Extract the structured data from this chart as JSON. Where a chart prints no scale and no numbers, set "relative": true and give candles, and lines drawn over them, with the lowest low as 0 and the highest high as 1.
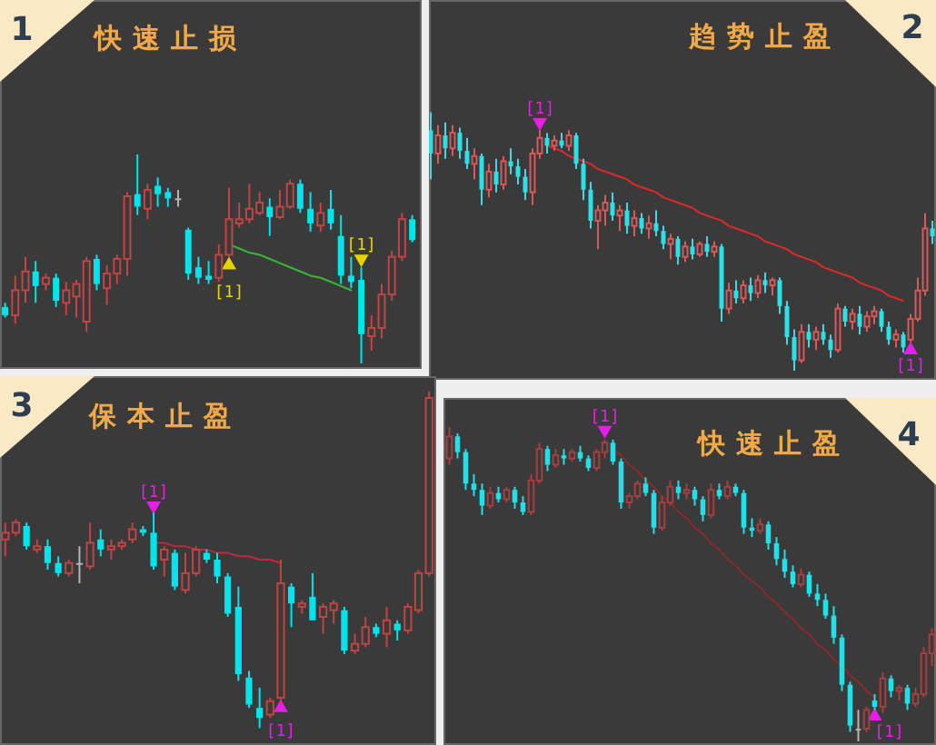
{
  "chart_data": [
    {
      "type": "candlestick",
      "title": "快速止损",
      "annotations": [
        "1"
      ],
      "relative": true,
      "categories": [
        null,
        null,
        null,
        null,
        null,
        null,
        null,
        null,
        null,
        null,
        null,
        null,
        null,
        null,
        null,
        null,
        null,
        null,
        null,
        null,
        null,
        null,
        null,
        null,
        null,
        null,
        null,
        null,
        null,
        null,
        null,
        null,
        null,
        null,
        null,
        null,
        null,
        null,
        null,
        null,
        null
      ],
      "ohlc": [
        [
          0.27,
          0.29,
          0.22,
          0.23
        ],
        [
          0.23,
          0.42,
          0.19,
          0.35
        ],
        [
          0.35,
          0.51,
          0.29,
          0.44
        ],
        [
          0.44,
          0.49,
          0.29,
          0.37
        ],
        [
          0.38,
          0.43,
          0.35,
          0.41
        ],
        [
          0.41,
          0.43,
          0.27,
          0.3
        ],
        [
          0.29,
          0.39,
          0.23,
          0.35
        ],
        [
          0.32,
          0.4,
          0.22,
          0.38
        ],
        [
          0.2,
          0.51,
          0.15,
          0.49
        ],
        [
          0.5,
          0.52,
          0.35,
          0.38
        ],
        [
          0.36,
          0.47,
          0.28,
          0.43
        ],
        [
          0.43,
          0.52,
          0.38,
          0.5
        ],
        [
          0.5,
          0.82,
          0.42,
          0.8
        ],
        [
          0.81,
          1.0,
          0.71,
          0.75
        ],
        [
          0.74,
          0.86,
          0.69,
          0.83
        ],
        [
          0.85,
          0.89,
          0.75,
          0.81
        ],
        [
          0.82,
          0.84,
          0.75,
          0.79
        ],
        [
          0.79,
          0.83,
          0.75,
          0.79
        ],
        [
          0.64,
          0.65,
          0.4,
          0.43
        ],
        [
          0.46,
          0.51,
          0.38,
          0.41
        ],
        [
          0.42,
          0.49,
          0.38,
          0.4
        ],
        [
          0.41,
          0.57,
          0.39,
          0.52
        ],
        [
          0.52,
          0.84,
          0.51,
          0.69
        ],
        [
          0.67,
          0.77,
          0.65,
          0.69
        ],
        [
          0.69,
          0.86,
          0.67,
          0.74
        ],
        [
          0.72,
          0.82,
          0.71,
          0.77
        ],
        [
          0.75,
          0.79,
          0.61,
          0.7
        ],
        [
          0.7,
          0.83,
          0.69,
          0.75
        ],
        [
          0.75,
          0.88,
          0.74,
          0.86
        ],
        [
          0.86,
          0.88,
          0.72,
          0.74
        ],
        [
          0.74,
          0.82,
          0.63,
          0.67
        ],
        [
          0.66,
          0.77,
          0.63,
          0.72
        ],
        [
          0.74,
          0.83,
          0.64,
          0.67
        ],
        [
          0.61,
          0.71,
          0.38,
          0.42
        ],
        [
          0.42,
          0.51,
          0.36,
          0.39
        ],
        [
          0.4,
          0.46,
          0.0,
          0.14
        ],
        [
          0.13,
          0.23,
          0.06,
          0.17
        ],
        [
          0.17,
          0.38,
          0.12,
          0.33
        ],
        [
          0.33,
          0.54,
          0.3,
          0.51
        ],
        [
          0.51,
          0.72,
          0.49,
          0.69
        ],
        [
          0.69,
          0.71,
          0.58,
          0.59
        ]
      ],
      "colors": [
        "#00e4ec",
        "#c24545",
        "#c24545",
        "#00e4ec",
        "#c24545",
        "#00e4ec",
        "#c24545",
        "#c24545",
        "#c24545",
        "#00e4ec",
        "#c24545",
        "#c24545",
        "#c24545",
        "#00e4ec",
        "#c24545",
        "#00e4ec",
        "#00e4ec",
        "#b4b4b4",
        "#00e4ec",
        "#00e4ec",
        "#00e4ec",
        "#c24545",
        "#c24545",
        "#c24545",
        "#c24545",
        "#c24545",
        "#00e4ec",
        "#c24545",
        "#c24545",
        "#00e4ec",
        "#00e4ec",
        "#c24545",
        "#00e4ec",
        "#00e4ec",
        "#00e4ec",
        "#00e4ec",
        "#c24545",
        "#c24545",
        "#c24545",
        "#c24545",
        "#00e4ec"
      ],
      "series": [
        {
          "type": "line",
          "color": "#38b838",
          "values": [
            null,
            null,
            null,
            null,
            null,
            null,
            null,
            null,
            null,
            null,
            null,
            null,
            null,
            null,
            null,
            null,
            null,
            null,
            null,
            null,
            null,
            null,
            0.57,
            0.55,
            0.53,
            0.52,
            0.5,
            0.48,
            0.46,
            0.44,
            0.42,
            0.41,
            0.39,
            0.37,
            0.35,
            null,
            null,
            null,
            null,
            null,
            null
          ]
        },
        {
          "type": "scatter",
          "name": "[1]",
          "color": "#e6d200",
          "marker": "triangle",
          "values": [
            null,
            null,
            null,
            null,
            null,
            null,
            null,
            null,
            null,
            null,
            null,
            null,
            null,
            null,
            null,
            null,
            null,
            null,
            null,
            null,
            null,
            null,
            0.47,
            null,
            null,
            null,
            null,
            null,
            null,
            null,
            null,
            null,
            null,
            null,
            null,
            0.5,
            null,
            null,
            null,
            null,
            null
          ]
        }
      ]
    },
    {
      "type": "candlestick",
      "title": "趋势止盈",
      "annotations": [
        "2"
      ],
      "relative": true,
      "categories": [
        null,
        null,
        null,
        null,
        null,
        null,
        null,
        null,
        null,
        null,
        null,
        null,
        null,
        null,
        null,
        null,
        null,
        null,
        null,
        null,
        null,
        null,
        null,
        null,
        null,
        null,
        null,
        null,
        null,
        null,
        null,
        null,
        null,
        null,
        null,
        null,
        null,
        null,
        null,
        null,
        null,
        null,
        null,
        null,
        null,
        null,
        null,
        null,
        null,
        null,
        null,
        null,
        null,
        null,
        null,
        null,
        null,
        null,
        null,
        null,
        null,
        null,
        null,
        null,
        null,
        null,
        null,
        null,
        null,
        null
      ],
      "ohlc": [
        [
          0.93,
          1.0,
          0.74,
          0.84
        ],
        [
          0.84,
          0.95,
          0.8,
          0.91
        ],
        [
          0.91,
          0.96,
          0.82,
          0.86
        ],
        [
          0.86,
          0.95,
          0.83,
          0.92
        ],
        [
          0.92,
          0.94,
          0.82,
          0.85
        ],
        [
          0.85,
          0.9,
          0.78,
          0.8
        ],
        [
          0.8,
          0.86,
          0.74,
          0.83
        ],
        [
          0.83,
          0.84,
          0.64,
          0.7
        ],
        [
          0.7,
          0.8,
          0.67,
          0.77
        ],
        [
          0.77,
          0.82,
          0.69,
          0.72
        ],
        [
          0.72,
          0.83,
          0.7,
          0.81
        ],
        [
          0.81,
          0.86,
          0.76,
          0.79
        ],
        [
          0.79,
          0.82,
          0.72,
          0.75
        ],
        [
          0.75,
          0.78,
          0.66,
          0.69
        ],
        [
          0.69,
          0.86,
          0.64,
          0.84
        ],
        [
          0.84,
          0.93,
          0.82,
          0.9
        ],
        [
          0.9,
          0.92,
          0.84,
          0.87
        ],
        [
          0.87,
          0.91,
          0.85,
          0.89
        ],
        [
          0.89,
          0.92,
          0.86,
          0.87
        ],
        [
          0.87,
          0.93,
          0.85,
          0.91
        ],
        [
          0.91,
          0.92,
          0.78,
          0.8
        ],
        [
          0.8,
          0.82,
          0.66,
          0.7
        ],
        [
          0.7,
          0.73,
          0.55,
          0.58
        ],
        [
          0.58,
          0.64,
          0.47,
          0.62
        ],
        [
          0.62,
          0.68,
          0.56,
          0.65
        ],
        [
          0.65,
          0.69,
          0.58,
          0.6
        ],
        [
          0.6,
          0.64,
          0.54,
          0.62
        ],
        [
          0.62,
          0.65,
          0.53,
          0.56
        ],
        [
          0.56,
          0.62,
          0.52,
          0.59
        ],
        [
          0.59,
          0.61,
          0.53,
          0.55
        ],
        [
          0.55,
          0.6,
          0.51,
          0.57
        ],
        [
          0.57,
          0.62,
          0.52,
          0.54
        ],
        [
          0.54,
          0.56,
          0.47,
          0.49
        ],
        [
          0.49,
          0.53,
          0.43,
          0.51
        ],
        [
          0.51,
          0.52,
          0.41,
          0.44
        ],
        [
          0.44,
          0.5,
          0.42,
          0.48
        ],
        [
          0.48,
          0.51,
          0.43,
          0.45
        ],
        [
          0.45,
          0.5,
          0.44,
          0.49
        ],
        [
          0.49,
          0.52,
          0.44,
          0.46
        ],
        [
          0.46,
          0.5,
          0.44,
          0.48
        ],
        [
          0.48,
          0.49,
          0.19,
          0.24
        ],
        [
          0.24,
          0.34,
          0.22,
          0.31
        ],
        [
          0.31,
          0.35,
          0.26,
          0.28
        ],
        [
          0.28,
          0.35,
          0.26,
          0.33
        ],
        [
          0.33,
          0.36,
          0.27,
          0.3
        ],
        [
          0.3,
          0.37,
          0.28,
          0.35
        ],
        [
          0.35,
          0.38,
          0.3,
          0.33
        ],
        [
          0.33,
          0.36,
          0.29,
          0.35
        ],
        [
          0.35,
          0.36,
          0.22,
          0.25
        ],
        [
          0.25,
          0.27,
          0.1,
          0.13
        ],
        [
          0.13,
          0.16,
          0.0,
          0.04
        ],
        [
          0.04,
          0.18,
          0.03,
          0.15
        ],
        [
          0.15,
          0.18,
          0.09,
          0.12
        ],
        [
          0.12,
          0.17,
          0.08,
          0.15
        ],
        [
          0.15,
          0.18,
          0.1,
          0.12
        ],
        [
          0.12,
          0.14,
          0.05,
          0.08
        ],
        [
          0.08,
          0.26,
          0.07,
          0.24
        ],
        [
          0.24,
          0.25,
          0.17,
          0.19
        ],
        [
          0.19,
          0.24,
          0.16,
          0.22
        ],
        [
          0.22,
          0.25,
          0.14,
          0.17
        ],
        [
          0.17,
          0.23,
          0.15,
          0.21
        ],
        [
          0.21,
          0.25,
          0.18,
          0.23
        ],
        [
          0.23,
          0.24,
          0.15,
          0.17
        ],
        [
          0.17,
          0.19,
          0.1,
          0.12
        ],
        [
          0.12,
          0.16,
          0.09,
          0.14
        ],
        [
          0.14,
          0.15,
          0.07,
          0.09
        ],
        [
          0.12,
          0.22,
          0.11,
          0.2
        ],
        [
          0.2,
          0.36,
          0.19,
          0.31
        ],
        [
          0.31,
          0.61,
          0.29,
          0.55
        ],
        [
          0.55,
          0.58,
          0.49,
          0.52
        ]
      ],
      "colors": [
        "#2ee0e6",
        "#e05555",
        "#2ee0e6",
        "#e05555",
        "#2ee0e6",
        "#2ee0e6",
        "#e05555",
        "#2ee0e6",
        "#e05555",
        "#2ee0e6",
        "#e05555",
        "#2ee0e6",
        "#2ee0e6",
        "#2ee0e6",
        "#e05555",
        "#e05555",
        "#2ee0e6",
        "#e05555",
        "#2ee0e6",
        "#e05555",
        "#2ee0e6",
        "#2ee0e6",
        "#2ee0e6",
        "#e05555",
        "#e05555",
        "#2ee0e6",
        "#e05555",
        "#2ee0e6",
        "#e05555",
        "#2ee0e6",
        "#e05555",
        "#2ee0e6",
        "#2ee0e6",
        "#e05555",
        "#2ee0e6",
        "#e05555",
        "#2ee0e6",
        "#e05555",
        "#2ee0e6",
        "#e05555",
        "#2ee0e6",
        "#e05555",
        "#2ee0e6",
        "#e05555",
        "#2ee0e6",
        "#e05555",
        "#2ee0e6",
        "#e05555",
        "#2ee0e6",
        "#2ee0e6",
        "#2ee0e6",
        "#e05555",
        "#2ee0e6",
        "#e05555",
        "#2ee0e6",
        "#2ee0e6",
        "#e05555",
        "#2ee0e6",
        "#e05555",
        "#2ee0e6",
        "#e05555",
        "#e05555",
        "#2ee0e6",
        "#2ee0e6",
        "#e05555",
        "#2ee0e6",
        "#e05555",
        "#e05555",
        "#e05555",
        "#2ee0e6"
      ],
      "series": [
        {
          "type": "line",
          "color": "#e02828",
          "values": [
            null,
            null,
            null,
            null,
            null,
            null,
            null,
            null,
            null,
            null,
            null,
            null,
            null,
            null,
            null,
            null,
            0.87,
            0.86,
            0.85,
            0.83,
            0.82,
            0.81,
            0.8,
            0.78,
            0.77,
            0.76,
            0.75,
            0.74,
            0.72,
            0.71,
            0.7,
            0.69,
            0.67,
            0.66,
            0.65,
            0.64,
            0.63,
            0.61,
            0.6,
            0.59,
            0.58,
            0.56,
            0.55,
            0.54,
            0.53,
            0.52,
            0.5,
            0.49,
            0.48,
            0.47,
            0.45,
            0.44,
            0.43,
            0.42,
            0.4,
            0.39,
            0.38,
            0.37,
            0.36,
            0.34,
            0.33,
            0.32,
            0.31,
            0.29,
            0.28,
            0.27,
            null,
            null,
            null,
            null
          ]
        },
        {
          "type": "scatter",
          "name": "[1]",
          "color": "#e61ee6",
          "marker": "triangle",
          "values": [
            null,
            null,
            null,
            null,
            null,
            null,
            null,
            null,
            null,
            null,
            null,
            null,
            null,
            null,
            null,
            0.96,
            null,
            null,
            null,
            null,
            null,
            null,
            null,
            null,
            null,
            null,
            null,
            null,
            null,
            null,
            null,
            null,
            null,
            null,
            null,
            null,
            null,
            null,
            null,
            null,
            null,
            null,
            null,
            null,
            null,
            null,
            null,
            null,
            null,
            null,
            null,
            null,
            null,
            null,
            null,
            null,
            null,
            null,
            null,
            null,
            null,
            null,
            null,
            null,
            null,
            null,
            0.08,
            null,
            null,
            null
          ]
        }
      ]
    },
    {
      "type": "candlestick",
      "title": "保本止盈",
      "annotations": [
        "3"
      ],
      "relative": true,
      "categories": [
        null,
        null,
        null,
        null,
        null,
        null,
        null,
        null,
        null,
        null,
        null,
        null,
        null,
        null,
        null,
        null,
        null,
        null,
        null,
        null,
        null,
        null,
        null,
        null,
        null,
        null,
        null,
        null,
        null,
        null,
        null,
        null,
        null,
        null,
        null,
        null,
        null,
        null,
        null,
        null,
        null
      ],
      "ohlc": [
        [
          0.56,
          0.61,
          0.51,
          0.58
        ],
        [
          0.58,
          0.62,
          0.57,
          0.61
        ],
        [
          0.6,
          0.61,
          0.53,
          0.54
        ],
        [
          0.53,
          0.56,
          0.52,
          0.54
        ],
        [
          0.54,
          0.56,
          0.47,
          0.49
        ],
        [
          0.49,
          0.51,
          0.45,
          0.46
        ],
        [
          0.46,
          0.5,
          0.45,
          0.49
        ],
        [
          0.49,
          0.54,
          0.43,
          0.49
        ],
        [
          0.48,
          0.61,
          0.47,
          0.55
        ],
        [
          0.56,
          0.59,
          0.51,
          0.53
        ],
        [
          0.53,
          0.56,
          0.5,
          0.54
        ],
        [
          0.54,
          0.56,
          0.53,
          0.55
        ],
        [
          0.56,
          0.61,
          0.55,
          0.59
        ],
        [
          0.59,
          0.6,
          0.57,
          0.58
        ],
        [
          0.58,
          0.64,
          0.47,
          0.48
        ],
        [
          0.5,
          0.54,
          0.45,
          0.53
        ],
        [
          0.52,
          0.53,
          0.41,
          0.42
        ],
        [
          0.41,
          0.52,
          0.4,
          0.46
        ],
        [
          0.46,
          0.54,
          0.45,
          0.53
        ],
        [
          0.52,
          0.53,
          0.49,
          0.5
        ],
        [
          0.5,
          0.52,
          0.43,
          0.45
        ],
        [
          0.45,
          0.46,
          0.33,
          0.34
        ],
        [
          0.36,
          0.42,
          0.14,
          0.16
        ],
        [
          0.15,
          0.17,
          0.06,
          0.07
        ],
        [
          0.06,
          0.12,
          0.0,
          0.03
        ],
        [
          0.04,
          0.09,
          0.03,
          0.08
        ],
        [
          0.09,
          0.5,
          0.08,
          0.43
        ],
        [
          0.42,
          0.43,
          0.3,
          0.37
        ],
        [
          0.36,
          0.38,
          0.34,
          0.37
        ],
        [
          0.39,
          0.46,
          0.32,
          0.32
        ],
        [
          0.33,
          0.37,
          0.28,
          0.36
        ],
        [
          0.35,
          0.38,
          0.31,
          0.37
        ],
        [
          0.35,
          0.36,
          0.22,
          0.23
        ],
        [
          0.23,
          0.28,
          0.22,
          0.25
        ],
        [
          0.25,
          0.33,
          0.24,
          0.3
        ],
        [
          0.3,
          0.31,
          0.27,
          0.28
        ],
        [
          0.28,
          0.36,
          0.24,
          0.32
        ],
        [
          0.31,
          0.32,
          0.26,
          0.29
        ],
        [
          0.29,
          0.37,
          0.28,
          0.36
        ],
        [
          0.35,
          0.47,
          0.34,
          0.46
        ],
        [
          0.46,
          1.0,
          0.45,
          0.98
        ]
      ],
      "colors": [
        "#c04444",
        "#c04444",
        "#00e4ec",
        "#c04444",
        "#00e4ec",
        "#00e4ec",
        "#c04444",
        "#b4b4b4",
        "#c04444",
        "#00e4ec",
        "#c04444",
        "#c04444",
        "#c04444",
        "#00e4ec",
        "#00e4ec",
        "#c04444",
        "#00e4ec",
        "#c04444",
        "#c04444",
        "#00e4ec",
        "#00e4ec",
        "#00e4ec",
        "#00e4ec",
        "#00e4ec",
        "#00e4ec",
        "#c04444",
        "#c04444",
        "#00e4ec",
        "#c04444",
        "#00e4ec",
        "#c04444",
        "#c04444",
        "#00e4ec",
        "#c04444",
        "#c04444",
        "#00e4ec",
        "#c04444",
        "#00e4ec",
        "#c04444",
        "#c04444",
        "#c04444"
      ],
      "series": [
        {
          "type": "line",
          "color": "#c02840",
          "values": [
            null,
            null,
            null,
            null,
            null,
            null,
            null,
            null,
            null,
            null,
            null,
            null,
            null,
            null,
            0.55,
            0.55,
            0.54,
            0.54,
            0.53,
            0.53,
            0.52,
            0.52,
            0.51,
            0.51,
            0.5,
            0.5,
            0.49,
            null,
            null,
            null,
            null,
            null,
            null,
            null,
            null,
            null,
            null,
            null,
            null,
            null,
            null
          ]
        },
        {
          "type": "scatter",
          "name": "[1]",
          "color": "#e61ee6",
          "marker": "triangle",
          "values": [
            null,
            null,
            null,
            null,
            null,
            null,
            null,
            null,
            null,
            null,
            null,
            null,
            null,
            null,
            0.66,
            null,
            null,
            null,
            null,
            null,
            null,
            null,
            null,
            null,
            null,
            null,
            0.06,
            null,
            null,
            null,
            null,
            null,
            null,
            null,
            null,
            null,
            null,
            null,
            null,
            null,
            null
          ]
        }
      ]
    },
    {
      "type": "candlestick",
      "title": "快速止盈",
      "annotations": [
        "4"
      ],
      "relative": true,
      "categories": [
        null,
        null,
        null,
        null,
        null,
        null,
        null,
        null,
        null,
        null,
        null,
        null,
        null,
        null,
        null,
        null,
        null,
        null,
        null,
        null,
        null,
        null,
        null,
        null,
        null,
        null,
        null,
        null,
        null,
        null,
        null,
        null,
        null,
        null,
        null,
        null,
        null,
        null,
        null,
        null,
        null,
        null,
        null,
        null,
        null,
        null,
        null,
        null,
        null,
        null,
        null,
        null,
        null,
        null,
        null,
        null,
        null,
        null,
        null,
        null
      ],
      "ohlc": [
        [
          0.9,
          1.0,
          0.88,
          0.97
        ],
        [
          0.97,
          0.98,
          0.9,
          0.92
        ],
        [
          0.92,
          0.93,
          0.8,
          0.82
        ],
        [
          0.82,
          0.85,
          0.78,
          0.8
        ],
        [
          0.8,
          0.82,
          0.72,
          0.75
        ],
        [
          0.75,
          0.81,
          0.74,
          0.79
        ],
        [
          0.79,
          0.81,
          0.76,
          0.77
        ],
        [
          0.77,
          0.81,
          0.76,
          0.8
        ],
        [
          0.8,
          0.81,
          0.74,
          0.76
        ],
        [
          0.76,
          0.78,
          0.72,
          0.73
        ],
        [
          0.73,
          0.85,
          0.72,
          0.83
        ],
        [
          0.83,
          0.95,
          0.82,
          0.93
        ],
        [
          0.93,
          0.94,
          0.86,
          0.88
        ],
        [
          0.88,
          0.93,
          0.87,
          0.91
        ],
        [
          0.91,
          0.93,
          0.88,
          0.9
        ],
        [
          0.9,
          0.93,
          0.89,
          0.92
        ],
        [
          0.92,
          0.94,
          0.89,
          0.9
        ],
        [
          0.9,
          0.91,
          0.86,
          0.87
        ],
        [
          0.87,
          0.93,
          0.86,
          0.92
        ],
        [
          0.92,
          0.96,
          0.9,
          0.95
        ],
        [
          0.95,
          0.96,
          0.88,
          0.89
        ],
        [
          0.89,
          0.9,
          0.74,
          0.76
        ],
        [
          0.76,
          0.79,
          0.74,
          0.78
        ],
        [
          0.78,
          0.83,
          0.77,
          0.82
        ],
        [
          0.82,
          0.84,
          0.78,
          0.79
        ],
        [
          0.79,
          0.8,
          0.66,
          0.68
        ],
        [
          0.68,
          0.78,
          0.67,
          0.76
        ],
        [
          0.76,
          0.83,
          0.75,
          0.81
        ],
        [
          0.81,
          0.83,
          0.77,
          0.79
        ],
        [
          0.79,
          0.82,
          0.77,
          0.8
        ],
        [
          0.8,
          0.81,
          0.75,
          0.77
        ],
        [
          0.77,
          0.78,
          0.7,
          0.72
        ],
        [
          0.72,
          0.82,
          0.71,
          0.8
        ],
        [
          0.8,
          0.82,
          0.77,
          0.78
        ],
        [
          0.78,
          0.83,
          0.77,
          0.81
        ],
        [
          0.81,
          0.82,
          0.78,
          0.79
        ],
        [
          0.79,
          0.8,
          0.66,
          0.68
        ],
        [
          0.68,
          0.71,
          0.65,
          0.67
        ],
        [
          0.67,
          0.71,
          0.66,
          0.69
        ],
        [
          0.69,
          0.7,
          0.61,
          0.63
        ],
        [
          0.63,
          0.65,
          0.56,
          0.58
        ],
        [
          0.58,
          0.61,
          0.52,
          0.54
        ],
        [
          0.54,
          0.56,
          0.49,
          0.5
        ],
        [
          0.5,
          0.55,
          0.49,
          0.53
        ],
        [
          0.53,
          0.54,
          0.46,
          0.47
        ],
        [
          0.47,
          0.5,
          0.43,
          0.45
        ],
        [
          0.45,
          0.47,
          0.39,
          0.4
        ],
        [
          0.4,
          0.43,
          0.31,
          0.33
        ],
        [
          0.33,
          0.34,
          0.16,
          0.18
        ],
        [
          0.18,
          0.19,
          0.03,
          0.05
        ],
        [
          0.04,
          0.1,
          0.0,
          0.04
        ],
        [
          0.04,
          0.11,
          0.03,
          0.1
        ],
        [
          0.13,
          0.15,
          0.1,
          0.11
        ],
        [
          0.11,
          0.22,
          0.09,
          0.2
        ],
        [
          0.2,
          0.21,
          0.14,
          0.16
        ],
        [
          0.16,
          0.18,
          0.13,
          0.17
        ],
        [
          0.17,
          0.18,
          0.1,
          0.12
        ],
        [
          0.12,
          0.17,
          0.11,
          0.15
        ],
        [
          0.15,
          0.3,
          0.14,
          0.28
        ],
        [
          0.28,
          0.36,
          0.24,
          0.34
        ]
      ],
      "colors": [
        "#a44040",
        "#22dfe8",
        "#22dfe8",
        "#22dfe8",
        "#22dfe8",
        "#a44040",
        "#22dfe8",
        "#a44040",
        "#22dfe8",
        "#22dfe8",
        "#a44040",
        "#a44040",
        "#22dfe8",
        "#a44040",
        "#22dfe8",
        "#a44040",
        "#22dfe8",
        "#22dfe8",
        "#a44040",
        "#a44040",
        "#22dfe8",
        "#22dfe8",
        "#a44040",
        "#a44040",
        "#22dfe8",
        "#22dfe8",
        "#a44040",
        "#a44040",
        "#22dfe8",
        "#a44040",
        "#22dfe8",
        "#22dfe8",
        "#a44040",
        "#22dfe8",
        "#a44040",
        "#22dfe8",
        "#22dfe8",
        "#22dfe8",
        "#a44040",
        "#22dfe8",
        "#22dfe8",
        "#22dfe8",
        "#22dfe8",
        "#a44040",
        "#22dfe8",
        "#22dfe8",
        "#22dfe8",
        "#22dfe8",
        "#22dfe8",
        "#22dfe8",
        "#b4b4b4",
        "#a44040",
        "#22dfe8",
        "#a44040",
        "#22dfe8",
        "#a44040",
        "#22dfe8",
        "#a44040",
        "#a44040",
        "#a44040"
      ],
      "series": [
        {
          "type": "line",
          "color": "#8a2a2a",
          "values": [
            null,
            null,
            null,
            null,
            null,
            null,
            null,
            null,
            null,
            null,
            null,
            null,
            null,
            null,
            null,
            null,
            null,
            null,
            null,
            null,
            0.93,
            0.91,
            0.88,
            0.86,
            0.83,
            0.81,
            0.78,
            0.76,
            0.73,
            0.71,
            0.68,
            0.66,
            0.63,
            0.61,
            0.58,
            0.56,
            0.53,
            0.51,
            0.49,
            0.46,
            0.44,
            0.41,
            0.39,
            0.36,
            0.34,
            0.31,
            0.29,
            0.26,
            0.24,
            0.21,
            0.19,
            0.16,
            0.14,
            null,
            null,
            null,
            null,
            null,
            null,
            null
          ]
        },
        {
          "type": "scatter",
          "name": "[1]",
          "color": "#e61ee6",
          "marker": "triangle",
          "values": [
            null,
            null,
            null,
            null,
            null,
            null,
            null,
            null,
            null,
            null,
            null,
            null,
            null,
            null,
            null,
            null,
            null,
            null,
            null,
            0.99,
            null,
            null,
            null,
            null,
            null,
            null,
            null,
            null,
            null,
            null,
            null,
            null,
            null,
            null,
            null,
            null,
            null,
            null,
            null,
            null,
            null,
            null,
            null,
            null,
            null,
            null,
            null,
            null,
            null,
            null,
            null,
            null,
            0.08,
            null,
            null,
            null,
            null,
            null,
            null,
            null
          ]
        }
      ]
    }
  ]
}
